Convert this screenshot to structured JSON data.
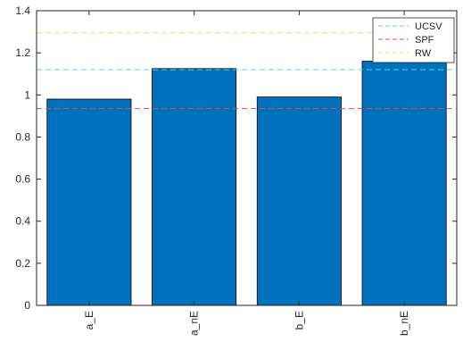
{
  "chart_data": {
    "type": "bar",
    "categories": [
      "a_E",
      "a_nE",
      "b_E",
      "b_nE"
    ],
    "values": [
      0.98,
      1.125,
      0.99,
      1.16
    ],
    "ylim": [
      0,
      1.4
    ],
    "yticks": [
      0,
      0.2,
      0.4,
      0.6,
      0.8,
      1,
      1.2,
      1.4
    ],
    "ytick_labels": [
      "0",
      "0.2",
      "0.4",
      "0.6",
      "0.8",
      "1",
      "1.2",
      "1.4"
    ],
    "bar_color": "#0072BD",
    "reference_lines": [
      {
        "name": "UCSV",
        "value": 1.12,
        "color": "#4DD9E6",
        "style": "dashed"
      },
      {
        "name": "SPF",
        "value": 0.935,
        "color": "#E8474A",
        "style": "dashed"
      },
      {
        "name": "RW",
        "value": 1.295,
        "color": "#E6E64D",
        "style": "dashed"
      }
    ],
    "legend_position": "top-right",
    "grid": false,
    "title": "",
    "xlabel": "",
    "ylabel": ""
  }
}
